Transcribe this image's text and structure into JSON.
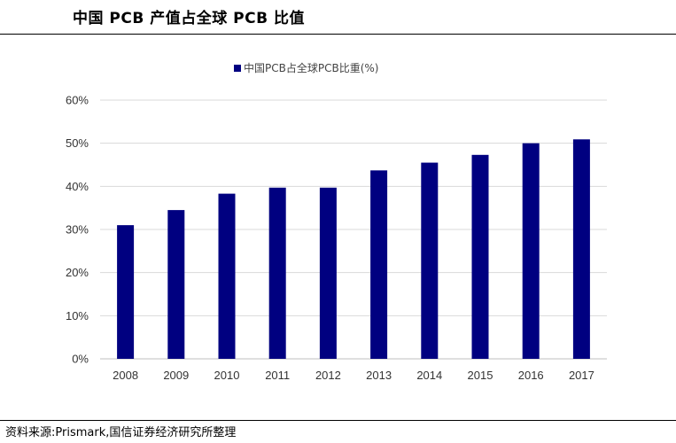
{
  "header": {
    "title": "中国 PCB 产值占全球 PCB 比值"
  },
  "footer": {
    "source": "资料来源:Prismark,国信证券经济研究所整理"
  },
  "colors": {
    "bar": "#000080",
    "grid": "#d9d9d9",
    "axis": "#bfbfbf"
  },
  "chart_data": {
    "type": "bar",
    "categories": [
      "2008",
      "2009",
      "2010",
      "2011",
      "2012",
      "2013",
      "2014",
      "2015",
      "2016",
      "2017"
    ],
    "series": [
      {
        "name": "中国PCB占全球PCB比重(%)",
        "values": [
          31,
          34.5,
          38.3,
          39.7,
          39.7,
          43.7,
          45.5,
          47.3,
          50,
          50.9
        ]
      }
    ],
    "y_ticks": [
      "0%",
      "10%",
      "20%",
      "30%",
      "40%",
      "50%",
      "60%"
    ],
    "ylim": [
      0,
      60
    ],
    "grid": true,
    "legend_position": "top-center"
  }
}
